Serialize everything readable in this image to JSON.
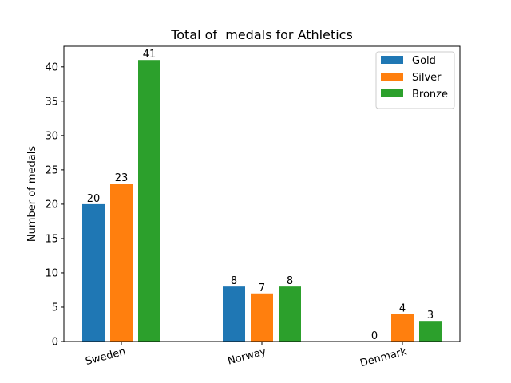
{
  "chart_data": {
    "type": "bar",
    "title": "Total of  medals for Athletics",
    "xlabel": "",
    "ylabel": "Number of medals",
    "categories": [
      "Sweden",
      "Norway",
      "Denmark"
    ],
    "series": [
      {
        "name": "Gold",
        "color": "#1f77b4",
        "values": [
          20,
          8,
          0
        ]
      },
      {
        "name": "Silver",
        "color": "#ff7f0e",
        "values": [
          23,
          7,
          4
        ]
      },
      {
        "name": "Bronze",
        "color": "#2ca02c",
        "values": [
          41,
          8,
          3
        ]
      }
    ],
    "ylim": [
      0,
      43
    ],
    "yticks": [
      0,
      5,
      10,
      15,
      20,
      25,
      30,
      35,
      40
    ],
    "xtick_rotation": "slanted",
    "grid": false,
    "legend_position": "top-right",
    "data_labels": true
  }
}
